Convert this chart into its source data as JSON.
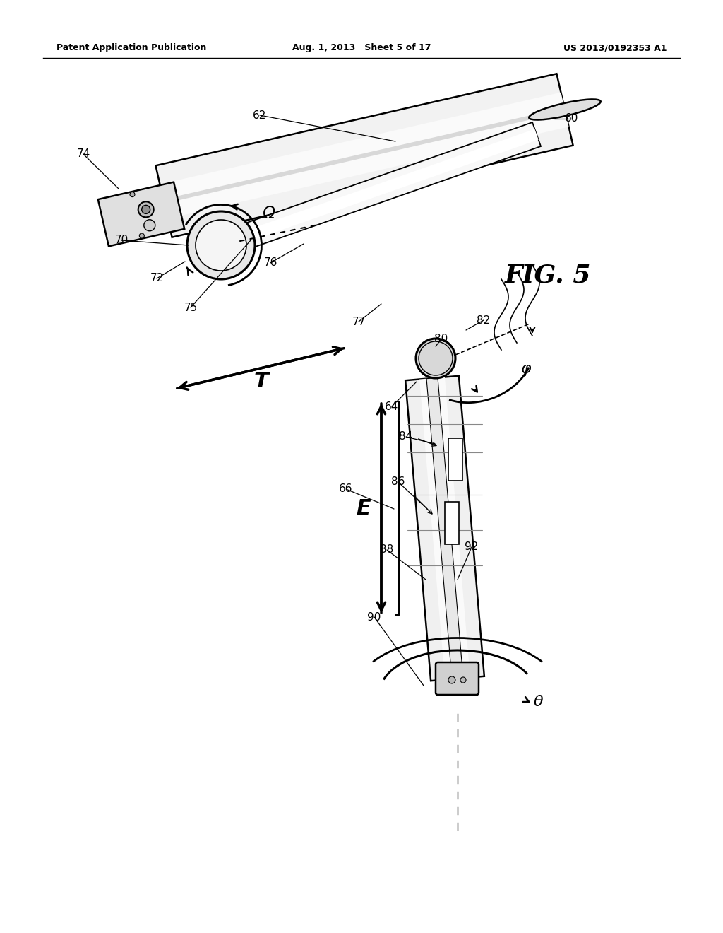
{
  "header_left": "Patent Application Publication",
  "header_mid": "Aug. 1, 2013   Sheet 5 of 17",
  "header_right": "US 2013/0192353 A1",
  "fig_label": "FIG. 5",
  "background_color": "#ffffff"
}
